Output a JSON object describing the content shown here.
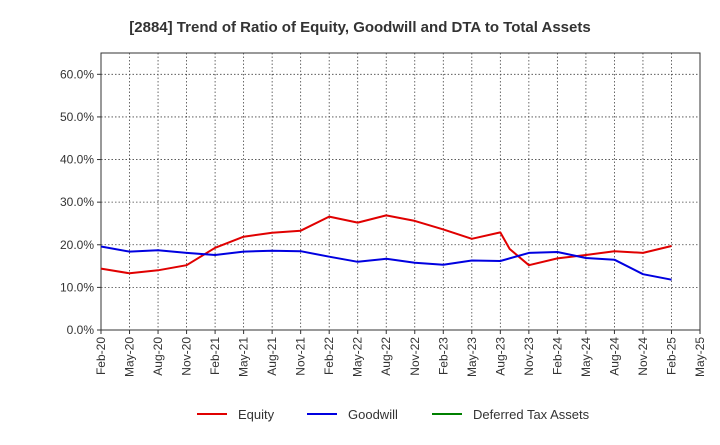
{
  "chart_data": {
    "type": "line",
    "title": "[2884]  Trend of Ratio of Equity, Goodwill and DTA to Total Assets",
    "xlabel": "",
    "ylabel": "",
    "ylim": [
      0,
      65
    ],
    "y_ticks": [
      0,
      10,
      20,
      30,
      40,
      50,
      60
    ],
    "y_tick_labels": [
      "0.0%",
      "10.0%",
      "20.0%",
      "30.0%",
      "40.0%",
      "50.0%",
      "60.0%"
    ],
    "x_tick_labels": [
      "Feb-20",
      "May-20",
      "Aug-20",
      "Nov-20",
      "Feb-21",
      "May-21",
      "Aug-21",
      "Nov-21",
      "Feb-22",
      "May-22",
      "Aug-22",
      "Nov-22",
      "Feb-23",
      "May-23",
      "Aug-23",
      "Nov-23",
      "Feb-24",
      "May-24",
      "Aug-24",
      "Nov-24",
      "Feb-25",
      "May-25"
    ],
    "grid": true,
    "legend_position": "bottom",
    "series": [
      {
        "name": "Equity",
        "color": "#e00000",
        "points": [
          [
            0,
            14.4
          ],
          [
            1,
            13.3
          ],
          [
            2,
            14.0
          ],
          [
            3,
            15.2
          ],
          [
            4,
            19.3
          ],
          [
            5,
            21.9
          ],
          [
            6,
            22.8
          ],
          [
            7,
            23.3
          ],
          [
            8,
            26.6
          ],
          [
            9,
            25.2
          ],
          [
            10,
            26.9
          ],
          [
            11,
            25.6
          ],
          [
            12,
            23.6
          ],
          [
            13,
            21.4
          ],
          [
            14,
            22.9
          ],
          [
            14.33,
            19.0
          ],
          [
            15,
            15.2
          ],
          [
            16,
            16.8
          ],
          [
            17,
            17.6
          ],
          [
            18,
            18.5
          ],
          [
            19,
            18.1
          ],
          [
            20,
            19.7
          ]
        ]
      },
      {
        "name": "Goodwill",
        "color": "#0000e0",
        "points": [
          [
            0,
            19.6
          ],
          [
            1,
            18.4
          ],
          [
            2,
            18.7
          ],
          [
            3,
            18.1
          ],
          [
            4,
            17.6
          ],
          [
            5,
            18.4
          ],
          [
            6,
            18.6
          ],
          [
            7,
            18.5
          ],
          [
            8,
            17.2
          ],
          [
            9,
            16.0
          ],
          [
            10,
            16.7
          ],
          [
            11,
            15.8
          ],
          [
            12,
            15.3
          ],
          [
            13,
            16.3
          ],
          [
            14,
            16.2
          ],
          [
            15,
            18.1
          ],
          [
            16,
            18.3
          ],
          [
            17,
            16.9
          ],
          [
            18,
            16.5
          ],
          [
            19,
            13.1
          ],
          [
            20,
            11.8
          ]
        ]
      },
      {
        "name": "Deferred Tax Assets",
        "color": "#008000",
        "points": []
      }
    ]
  }
}
